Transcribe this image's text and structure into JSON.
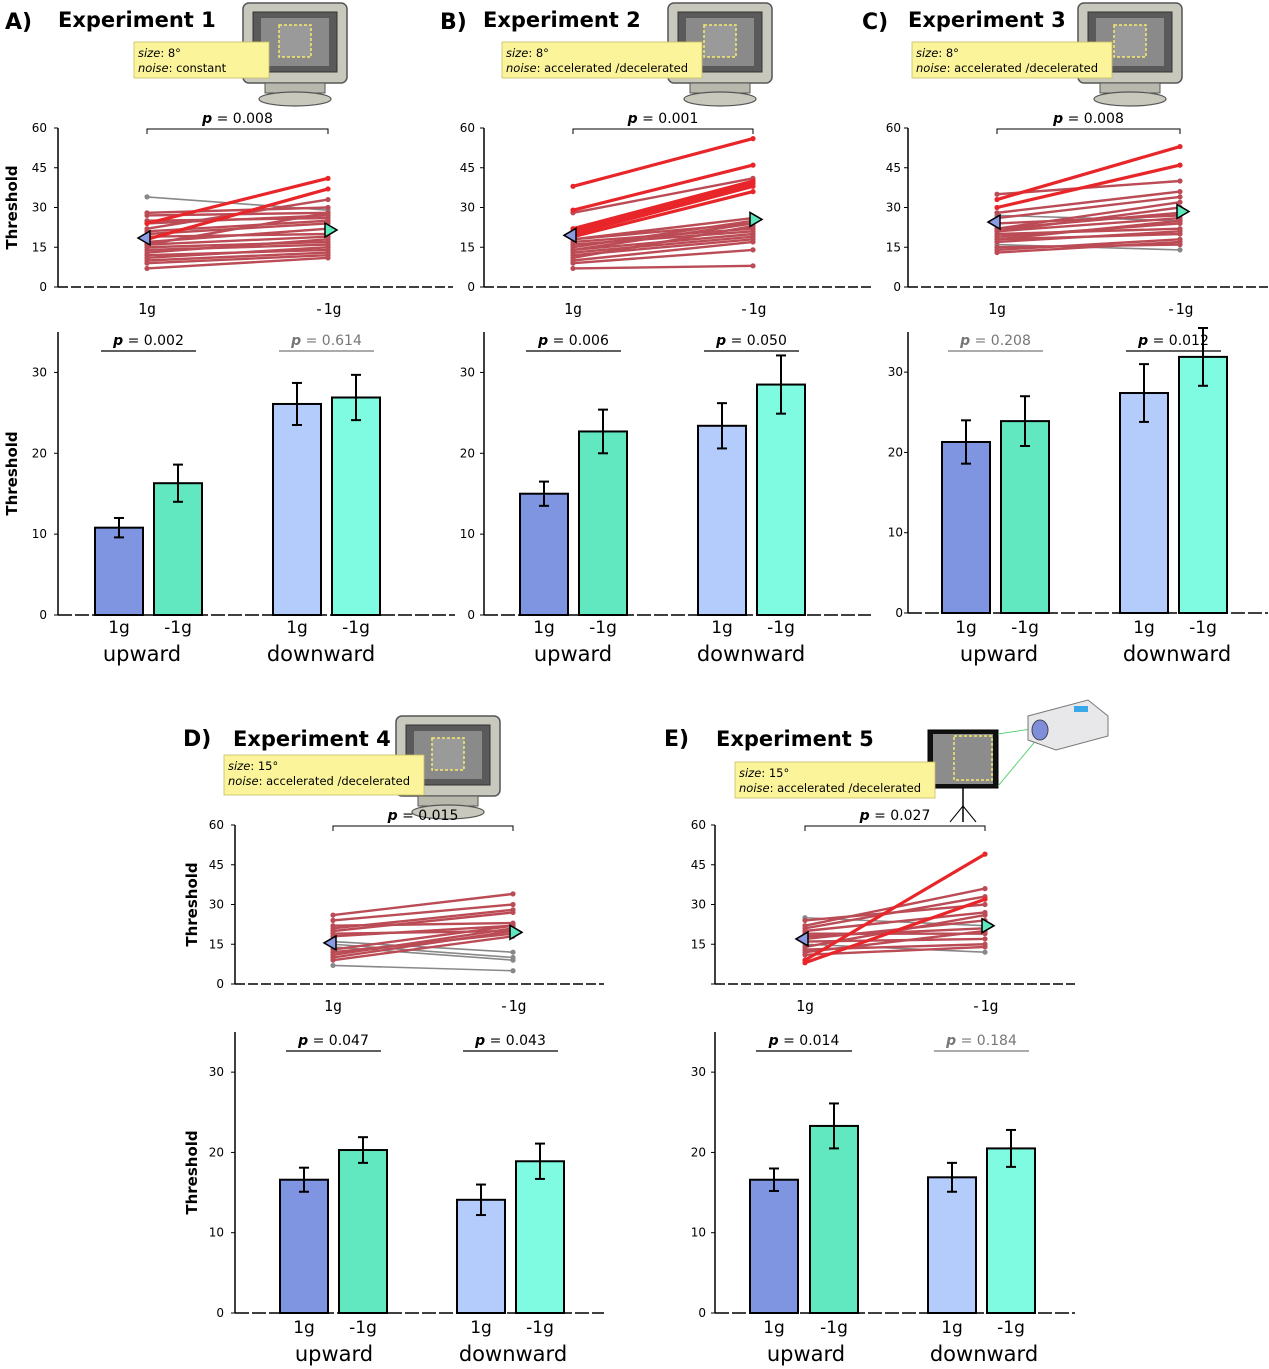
{
  "chart_data": [
    {
      "id": "A",
      "letter": "A)",
      "title": "Experiment 1",
      "size_label": "size",
      "size_value": "8°",
      "noise_label": "noise",
      "noise_value": "constant",
      "apparatus": "monitor",
      "line_plot": {
        "type": "line",
        "ylabel": "Threshold",
        "ylim": [
          0,
          60
        ],
        "yticks": [
          "0",
          "15",
          "30",
          "45",
          "60"
        ],
        "categories": [
          "1g",
          "-1g"
        ],
        "p_label": "p",
        "p_text": " = 0.008",
        "mean": [
          18.5,
          21.5
        ],
        "pairs": [
          [
            34,
            29
          ],
          [
            28,
            30
          ],
          [
            27,
            28
          ],
          [
            25,
            26
          ],
          [
            24,
            27
          ],
          [
            21,
            25
          ],
          [
            20,
            24
          ],
          [
            19,
            20
          ],
          [
            17,
            22
          ],
          [
            16,
            19
          ],
          [
            15,
            17
          ],
          [
            14,
            16
          ],
          [
            12,
            14
          ],
          [
            10,
            13
          ],
          [
            9,
            12
          ],
          [
            7,
            11
          ],
          [
            24,
            41
          ],
          [
            18,
            37
          ],
          [
            22,
            33
          ],
          [
            16,
            28
          ],
          [
            13,
            18
          ],
          [
            11,
            15
          ]
        ]
      },
      "bar_plot": {
        "type": "bar",
        "ylabel": "Threshold",
        "ylim": [
          0,
          35
        ],
        "yticks": [
          "0",
          "10",
          "20",
          "30"
        ],
        "categories": [
          "1g",
          "-1g"
        ],
        "groups": [
          "upward",
          "downward"
        ],
        "values": [
          10.8,
          16.3,
          26.1,
          26.9
        ],
        "errors": [
          1.2,
          2.3,
          2.6,
          2.8
        ],
        "p_label": "p",
        "p_texts": [
          " = 0.002",
          " = 0.614"
        ],
        "p_significant": [
          true,
          false
        ]
      }
    },
    {
      "id": "B",
      "letter": "B)",
      "title": "Experiment 2",
      "size_label": "size",
      "size_value": "8°",
      "noise_label": "noise",
      "noise_value": "accelerated /decelerated",
      "apparatus": "monitor",
      "line_plot": {
        "type": "line",
        "ylabel": "",
        "ylim": [
          0,
          60
        ],
        "yticks": [
          "0",
          "15",
          "30",
          "45",
          "60"
        ],
        "categories": [
          "1g",
          "-1g"
        ],
        "p_label": "p",
        "p_text": " = 0.001",
        "mean": [
          19.5,
          25.5
        ],
        "pairs": [
          [
            38,
            56
          ],
          [
            29,
            46
          ],
          [
            28,
            41
          ],
          [
            22,
            40
          ],
          [
            20,
            38
          ],
          [
            19,
            36
          ],
          [
            18,
            24
          ],
          [
            17,
            22
          ],
          [
            16,
            21
          ],
          [
            15,
            25
          ],
          [
            14,
            20
          ],
          [
            13,
            19
          ],
          [
            12,
            18
          ],
          [
            10,
            17
          ],
          [
            9,
            14
          ],
          [
            7,
            8
          ],
          [
            21,
            39
          ],
          [
            18,
            26
          ],
          [
            14,
            24
          ],
          [
            11,
            23
          ]
        ]
      },
      "bar_plot": {
        "type": "bar",
        "ylabel": "",
        "ylim": [
          0,
          35
        ],
        "yticks": [
          "0",
          "10",
          "20",
          "30"
        ],
        "categories": [
          "1g",
          "-1g"
        ],
        "groups": [
          "upward",
          "downward"
        ],
        "values": [
          15.0,
          22.7,
          23.4,
          28.5
        ],
        "errors": [
          1.5,
          2.7,
          2.8,
          3.6
        ],
        "p_label": "p",
        "p_texts": [
          " = 0.006",
          " = 0.050"
        ],
        "p_significant": [
          true,
          true
        ]
      }
    },
    {
      "id": "C",
      "letter": "C)",
      "title": "Experiment 3",
      "size_label": "size",
      "size_value": "8°",
      "noise_label": "noise",
      "noise_value": "accelerated /decelerated",
      "apparatus": "monitor",
      "line_plot": {
        "type": "line",
        "ylabel": "",
        "ylim": [
          0,
          60
        ],
        "yticks": [
          "0",
          "15",
          "30",
          "45",
          "60"
        ],
        "categories": [
          "1g",
          "-1g"
        ],
        "p_label": "p",
        "p_text": " = 0.008",
        "mean": [
          24.5,
          28.5
        ],
        "pairs": [
          [
            35,
            40
          ],
          [
            33,
            53
          ],
          [
            30,
            46
          ],
          [
            28,
            36
          ],
          [
            27,
            25
          ],
          [
            24,
            27
          ],
          [
            22,
            32
          ],
          [
            21,
            30
          ],
          [
            20,
            22
          ],
          [
            19,
            24
          ],
          [
            18,
            20
          ],
          [
            17,
            21
          ],
          [
            16,
            14
          ],
          [
            15,
            16
          ],
          [
            14,
            18
          ],
          [
            13,
            17
          ],
          [
            26,
            34
          ],
          [
            22,
            28
          ],
          [
            21,
            26
          ],
          [
            18,
            25
          ]
        ]
      },
      "bar_plot": {
        "type": "bar",
        "ylabel": "",
        "ylim": [
          0,
          35
        ],
        "yticks": [
          "0",
          "10",
          "20",
          "30"
        ],
        "categories": [
          "1g",
          "-1g"
        ],
        "groups": [
          "upward",
          "downward"
        ],
        "values": [
          21.3,
          23.9,
          27.4,
          31.9
        ],
        "errors": [
          2.7,
          3.1,
          3.6,
          3.6
        ],
        "p_label": "p",
        "p_texts": [
          " = 0.208",
          " = 0.012"
        ],
        "p_significant": [
          false,
          true
        ]
      }
    },
    {
      "id": "D",
      "letter": "D)",
      "title": "Experiment 4",
      "size_label": "size",
      "size_value": "15°",
      "noise_label": "noise",
      "noise_value": "accelerated /decelerated",
      "apparatus": "monitor",
      "line_plot": {
        "type": "line",
        "ylabel": "Threshold",
        "ylim": [
          0,
          60
        ],
        "yticks": [
          "0",
          "15",
          "30",
          "45",
          "60"
        ],
        "categories": [
          "1g",
          "-1g"
        ],
        "p_label": "p",
        "p_text": " = 0.015",
        "mean": [
          15.5,
          19.5
        ],
        "pairs": [
          [
            26,
            34
          ],
          [
            24,
            30
          ],
          [
            22,
            23
          ],
          [
            21,
            28
          ],
          [
            20,
            27
          ],
          [
            19,
            20
          ],
          [
            18,
            22
          ],
          [
            16,
            12
          ],
          [
            15,
            10
          ],
          [
            14,
            9
          ],
          [
            13,
            22
          ],
          [
            12,
            19
          ],
          [
            11,
            21
          ],
          [
            10,
            20
          ],
          [
            9,
            18
          ],
          [
            7,
            5
          ]
        ]
      },
      "bar_plot": {
        "type": "bar",
        "ylabel": "Threshold",
        "ylim": [
          0,
          35
        ],
        "yticks": [
          "0",
          "10",
          "20",
          "30"
        ],
        "categories": [
          "1g",
          "-1g"
        ],
        "groups": [
          "upward",
          "downward"
        ],
        "values": [
          16.6,
          20.3,
          14.1,
          18.9
        ],
        "errors": [
          1.5,
          1.6,
          1.9,
          2.2
        ],
        "p_label": "p",
        "p_texts": [
          " = 0.047",
          " = 0.043"
        ],
        "p_significant": [
          true,
          true
        ]
      }
    },
    {
      "id": "E",
      "letter": "E)",
      "title": "Experiment 5",
      "size_label": "size",
      "size_value": "15°",
      "noise_label": "noise",
      "noise_value": "accelerated /decelerated",
      "apparatus": "projector",
      "line_plot": {
        "type": "line",
        "ylabel": "",
        "ylim": [
          0,
          60
        ],
        "yticks": [
          "",
          "15",
          "30",
          "45",
          "60"
        ],
        "categories": [
          "1g",
          "-1g"
        ],
        "p_label": "p",
        "p_text": " = 0.027",
        "mean": [
          17,
          22
        ],
        "pairs": [
          [
            25,
            22
          ],
          [
            24,
            30
          ],
          [
            22,
            36
          ],
          [
            21,
            33
          ],
          [
            20,
            27
          ],
          [
            19,
            19
          ],
          [
            18,
            21
          ],
          [
            17,
            24
          ],
          [
            16,
            17
          ],
          [
            15,
            12
          ],
          [
            14,
            26
          ],
          [
            13,
            15
          ],
          [
            12,
            20
          ],
          [
            11,
            14
          ],
          [
            9,
            49
          ],
          [
            8,
            32
          ]
        ]
      },
      "bar_plot": {
        "type": "bar",
        "ylabel": "",
        "ylim": [
          0,
          35
        ],
        "yticks": [
          "0",
          "10",
          "20",
          "30"
        ],
        "categories": [
          "1g",
          "-1g"
        ],
        "groups": [
          "upward",
          "downward"
        ],
        "values": [
          16.6,
          23.3,
          16.9,
          20.5
        ],
        "errors": [
          1.4,
          2.8,
          1.8,
          2.3
        ],
        "p_label": "p",
        "p_texts": [
          " = 0.014",
          " = 0.184"
        ],
        "p_significant": [
          true,
          false
        ]
      }
    }
  ],
  "colors": {
    "bar_up_1g": "#7f95e2",
    "bar_up_m1g": "#62e8c0",
    "bar_down_1g": "#b3ccfb",
    "bar_down_m1g": "#7efbe1",
    "line_increase": "#bb4b55",
    "line_increase_strong": "#e8262a",
    "line_decrease": "#888888",
    "mean_1g": "#8a9ae3",
    "mean_m1g": "#5fe8bd",
    "note_bg": "#fbf49b"
  }
}
